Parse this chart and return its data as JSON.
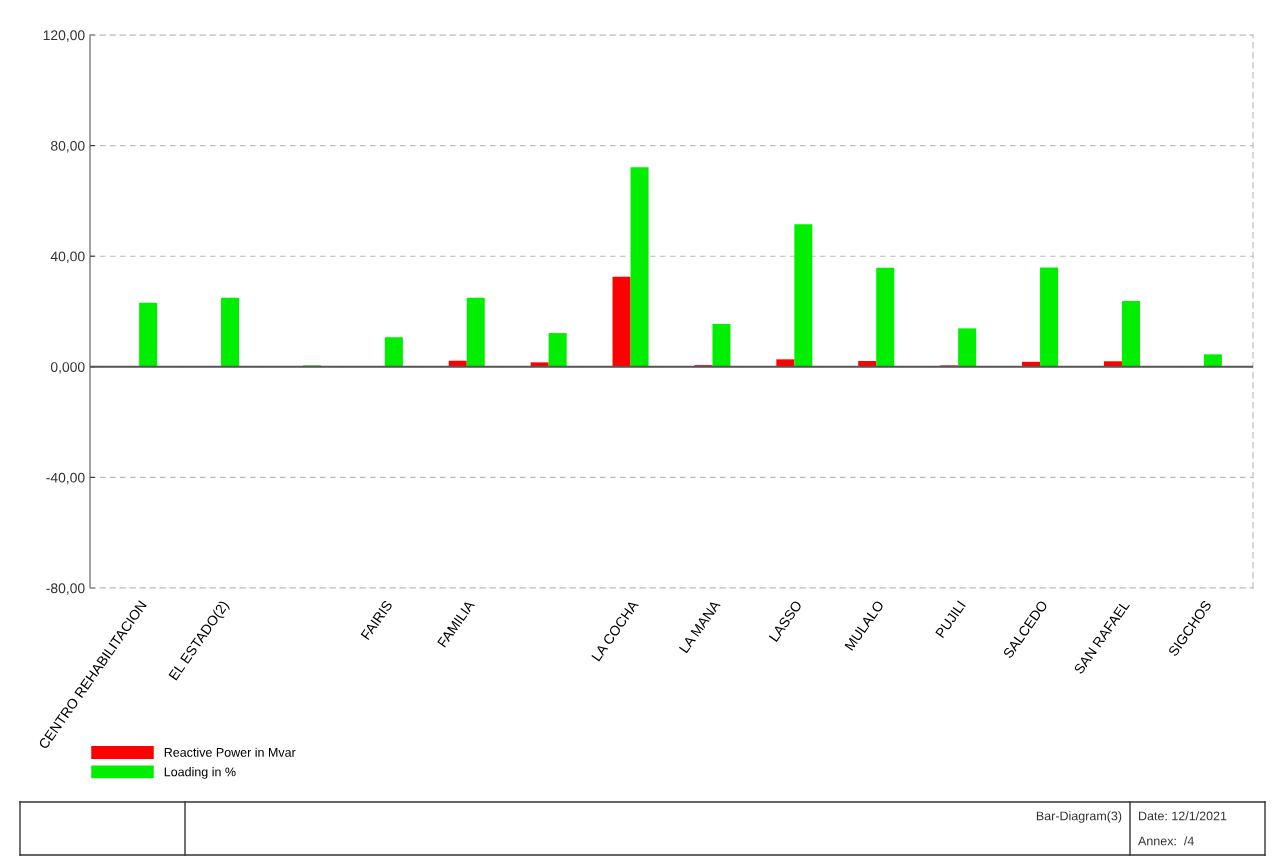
{
  "chart_data": {
    "type": "bar",
    "categories": [
      "CENTRO REHABILITACION",
      "EL ESTADO(2)",
      null,
      "FAIRIS",
      "FAMILIA",
      null,
      "LA COCHA",
      "LA MANA",
      "LASSO",
      "MULALO",
      "PUJILI",
      "SALCEDO",
      "SAN RAFAEL",
      "SIGCHOS"
    ],
    "series": [
      {
        "name": "Reactive Power in Mvar",
        "color": "#ff0000",
        "values": [
          null,
          null,
          null,
          null,
          2.2,
          1.6,
          32.6,
          0.6,
          2.7,
          2.1,
          0.5,
          1.8,
          2.0,
          null
        ]
      },
      {
        "name": "Loading in %",
        "color": "#00ee00",
        "values": [
          23.2,
          25.0,
          0.5,
          10.7,
          25.0,
          12.2,
          72.2,
          15.5,
          51.6,
          35.8,
          13.9,
          35.9,
          23.8,
          4.5
        ]
      }
    ],
    "ylim": [
      -80,
      120
    ],
    "yticks": [
      {
        "value": -80,
        "label": "-80,00"
      },
      {
        "value": -40,
        "label": "-40,00"
      },
      {
        "value": 0,
        "label": "0,000"
      },
      {
        "value": 40,
        "label": "40,00"
      },
      {
        "value": 80,
        "label": "80,00"
      },
      {
        "value": 120,
        "label": "120,00"
      }
    ],
    "grid": "y",
    "legend": "bottom left",
    "annotations": [
      "Bar-Diagram(3)",
      "Date: 12/1/2021",
      "Annex:  /4"
    ]
  }
}
